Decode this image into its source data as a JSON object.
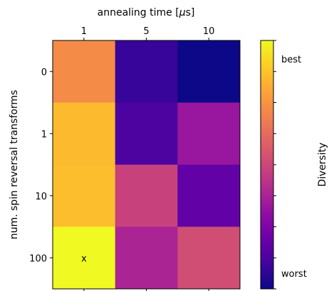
{
  "chart_data": {
    "type": "heatmap",
    "title": "",
    "xlabel": "annealing time [μs]",
    "xlabel_parts": [
      "annealing time [",
      "μ",
      "s]"
    ],
    "ylabel": "num. spin reversal transforms",
    "x_categories": [
      "1",
      "5",
      "10"
    ],
    "y_categories": [
      "0",
      "1",
      "10",
      "100"
    ],
    "values": [
      [
        0.72,
        0.08,
        0.0
      ],
      [
        0.85,
        0.13,
        0.33
      ],
      [
        0.86,
        0.48,
        0.18
      ],
      [
        1.0,
        0.38,
        0.52
      ]
    ],
    "annotations": [
      {
        "row": 3,
        "col": 0,
        "text": "x"
      }
    ],
    "colorbar": {
      "label": "Diversity",
      "colormap": "plasma",
      "range": [
        0,
        1
      ],
      "tick_labels": [
        {
          "value": 0.0,
          "text": "worst"
        },
        {
          "value": 1.0,
          "text": "best"
        }
      ],
      "minor_ticks": [
        0.0,
        0.125,
        0.25,
        0.375,
        0.5,
        0.625,
        0.75,
        0.875,
        1.0
      ]
    },
    "x_axis_position": "top",
    "legend": "colorbar-right",
    "grid": false
  }
}
